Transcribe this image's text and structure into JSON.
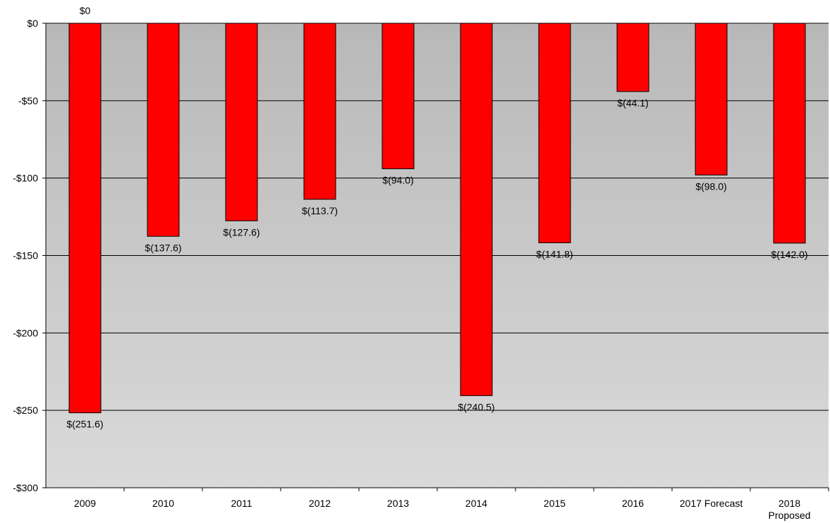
{
  "chart_data": {
    "type": "bar",
    "title": "",
    "xlabel": "",
    "ylabel": "",
    "categories": [
      "2009",
      "2010",
      "2011",
      "2012",
      "2013",
      "2014",
      "2015",
      "2016",
      "2017 Forecast",
      "2018\nProposed"
    ],
    "values": [
      -251.6,
      -137.6,
      -127.6,
      -113.7,
      -94.0,
      -240.5,
      -141.8,
      -44.1,
      -98.0,
      -142.0
    ],
    "data_labels": [
      "$(251.6)",
      "$(137.6)",
      "$(127.6)",
      "$(113.7)",
      "$(94.0)",
      "$(240.5)",
      "$(141.8)",
      "$(44.1)",
      "$(98.0)",
      "$(142.0)"
    ],
    "top_label": "$0",
    "ylim": [
      -300,
      0
    ],
    "y_ticks": [
      0,
      -50,
      -100,
      -150,
      -200,
      -250,
      -300
    ],
    "y_tick_labels": [
      "$0",
      "-$50",
      "-$100",
      "-$150",
      "-$200",
      "-$250",
      "-$300"
    ],
    "grid": true,
    "legend": "none",
    "colors": {
      "bar": "#ff0000",
      "bar_border": "#000000",
      "plot_gradient_top": "#b8b8b8",
      "plot_gradient_bottom": "#dadada",
      "gridline": "#000000"
    }
  }
}
